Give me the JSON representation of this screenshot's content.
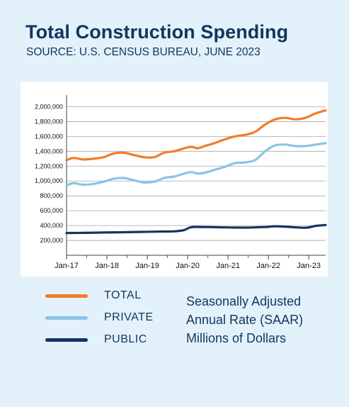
{
  "header": {
    "title": "Total Construction Spending",
    "subtitle": "SOURCE: U.S. CENSUS BUREAU, JUNE 2023"
  },
  "note": {
    "line1": "Seasonally Adjusted",
    "line2": "Annual Rate (SAAR)",
    "line3": "Millions of Dollars"
  },
  "legend": [
    {
      "label": "TOTAL",
      "color": "#ef7d2d"
    },
    {
      "label": "PRIVATE",
      "color": "#88c4e7"
    },
    {
      "label": "PUBLIC",
      "color": "#12365e"
    }
  ],
  "colors": {
    "background": "#e3f1fa",
    "title": "#13365c",
    "grid": "#a6a6a6",
    "axis": "#404040"
  },
  "chart_data": {
    "type": "line",
    "title": "Total Construction Spending",
    "subtitle": "SOURCE: U.S. CENSUS BUREAU, JUNE 2023",
    "xlabel": "",
    "ylabel": "",
    "x_tick_labels": [
      "Jan-17",
      "Jan-18",
      "Jan-19",
      "Jan-20",
      "Jan-21",
      "Jan-22",
      "Jan-23"
    ],
    "y_tick_labels": [
      "200,000",
      "400,000",
      "600,000",
      "800,000",
      "1,000,000",
      "1,200,000",
      "1,400,000",
      "1,600,000",
      "1,800,000",
      "2,000,000"
    ],
    "y_ticks": [
      200000,
      400000,
      600000,
      800000,
      1000000,
      1200000,
      1400000,
      1600000,
      1800000,
      2000000
    ],
    "ylim": [
      0,
      2100000
    ],
    "xlim": [
      "2017-01",
      "2023-06"
    ],
    "grid": true,
    "legend_position": "bottom",
    "series": [
      {
        "name": "TOTAL",
        "color": "#ef7d2d",
        "x": [
          "2017-01",
          "2017-03",
          "2017-06",
          "2017-09",
          "2017-12",
          "2018-03",
          "2018-06",
          "2018-09",
          "2018-12",
          "2019-03",
          "2019-06",
          "2019-09",
          "2019-12",
          "2020-02",
          "2020-04",
          "2020-06",
          "2020-09",
          "2020-12",
          "2021-03",
          "2021-06",
          "2021-09",
          "2021-12",
          "2022-03",
          "2022-06",
          "2022-09",
          "2022-12",
          "2023-03",
          "2023-06"
        ],
        "values": [
          1280000,
          1310000,
          1290000,
          1300000,
          1320000,
          1370000,
          1380000,
          1350000,
          1320000,
          1320000,
          1380000,
          1400000,
          1440000,
          1460000,
          1440000,
          1470000,
          1510000,
          1560000,
          1600000,
          1620000,
          1660000,
          1760000,
          1830000,
          1850000,
          1830000,
          1850000,
          1910000,
          1950000
        ]
      },
      {
        "name": "PRIVATE",
        "color": "#88c4e7",
        "x": [
          "2017-01",
          "2017-03",
          "2017-06",
          "2017-09",
          "2017-12",
          "2018-03",
          "2018-06",
          "2018-09",
          "2018-12",
          "2019-03",
          "2019-06",
          "2019-09",
          "2019-12",
          "2020-02",
          "2020-04",
          "2020-06",
          "2020-09",
          "2020-12",
          "2021-03",
          "2021-06",
          "2021-09",
          "2021-12",
          "2022-03",
          "2022-06",
          "2022-09",
          "2022-12",
          "2023-03",
          "2023-06"
        ],
        "values": [
          940000,
          970000,
          950000,
          960000,
          990000,
          1030000,
          1040000,
          1010000,
          980000,
          990000,
          1040000,
          1060000,
          1100000,
          1120000,
          1100000,
          1110000,
          1150000,
          1190000,
          1240000,
          1250000,
          1280000,
          1400000,
          1480000,
          1490000,
          1470000,
          1470000,
          1490000,
          1510000
        ]
      },
      {
        "name": "PUBLIC",
        "color": "#12365e",
        "x": [
          "2017-01",
          "2017-06",
          "2017-12",
          "2018-06",
          "2018-12",
          "2019-06",
          "2019-09",
          "2019-12",
          "2020-02",
          "2020-06",
          "2020-12",
          "2021-06",
          "2021-12",
          "2022-03",
          "2022-06",
          "2022-12",
          "2023-03",
          "2023-06"
        ],
        "values": [
          300000,
          302000,
          306000,
          310000,
          315000,
          320000,
          322000,
          340000,
          378000,
          380000,
          375000,
          372000,
          380000,
          390000,
          385000,
          370000,
          395000,
          408000
        ]
      }
    ]
  }
}
